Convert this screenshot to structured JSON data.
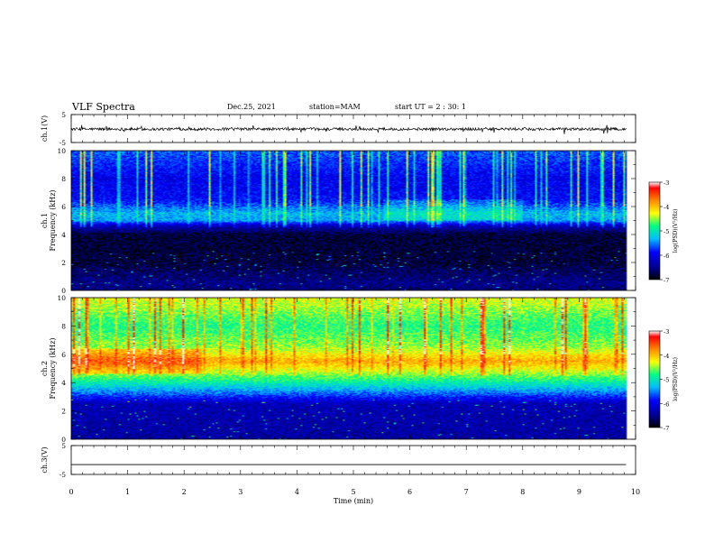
{
  "header": {
    "title": "VLF Spectra",
    "date": "Dec.25, 2021",
    "station": "station=MAM",
    "start_ut": "start  UT =  2 : 30: 1"
  },
  "colors": {
    "waveform": "#000000",
    "colormap": [
      "#000000",
      "#00008b",
      "#0000ff",
      "#00bfff",
      "#00ff80",
      "#ffff00",
      "#ff8000",
      "#ff0000",
      "#ffffff"
    ]
  },
  "chart_data": [
    {
      "id": "ch1-waveform",
      "type": "line",
      "ylabel": "ch.1(V)",
      "ylim": [
        -5,
        5
      ],
      "yticks": [
        "5",
        "-5"
      ],
      "xlim": [
        0,
        10
      ],
      "description_values": {
        "mean": -0.2,
        "amplitude": 1.0
      },
      "grid": false
    },
    {
      "id": "ch1-spectrogram",
      "type": "heatmap",
      "ylabel_line1": "ch.1",
      "ylabel_line2": "Frequency (kHz)",
      "ylim": [
        0,
        10
      ],
      "yticks": [
        "0",
        "2",
        "4",
        "6",
        "8",
        "10"
      ],
      "xlim": [
        0,
        10
      ],
      "data_end_min": 9.83,
      "colorbar": {
        "label": "log(PSD)(V²/Hz)",
        "range": [
          -7,
          -3
        ],
        "ticks": [
          "-3",
          "-4",
          "-5",
          "-6",
          "-7"
        ]
      },
      "profile": [
        {
          "f": 0.0,
          "v": -6.6
        },
        {
          "f": 0.5,
          "v": -6.5
        },
        {
          "f": 2.0,
          "v": -6.8
        },
        {
          "f": 4.0,
          "v": -6.8
        },
        {
          "f": 4.6,
          "v": -6.3
        },
        {
          "f": 5.0,
          "v": -5.4
        },
        {
          "f": 5.5,
          "v": -5.3
        },
        {
          "f": 6.5,
          "v": -5.9
        },
        {
          "f": 8.0,
          "v": -6.0
        },
        {
          "f": 10.0,
          "v": -5.6
        }
      ]
    },
    {
      "id": "ch2-spectrogram",
      "type": "heatmap",
      "ylabel_line1": "ch.2",
      "ylabel_line2": "Frequency (kHz)",
      "ylim": [
        0,
        10
      ],
      "yticks": [
        "0",
        "2",
        "4",
        "6",
        "8",
        "10"
      ],
      "xlim": [
        0,
        10
      ],
      "data_end_min": 9.83,
      "colorbar": {
        "label": "log(PSD)(V²/Hz)",
        "range": [
          -7,
          -3
        ],
        "ticks": [
          "-3",
          "-4",
          "-5",
          "-6",
          "-7"
        ]
      },
      "profile": [
        {
          "f": 0.0,
          "v": -6.4
        },
        {
          "f": 2.5,
          "v": -6.3
        },
        {
          "f": 3.2,
          "v": -5.6
        },
        {
          "f": 4.2,
          "v": -4.8
        },
        {
          "f": 5.5,
          "v": -3.9
        },
        {
          "f": 6.5,
          "v": -4.5
        },
        {
          "f": 8.0,
          "v": -4.8
        },
        {
          "f": 10.0,
          "v": -4.3
        }
      ]
    },
    {
      "id": "ch3-waveform",
      "type": "line",
      "ylabel": "ch.3(V)",
      "ylim": [
        -5,
        5
      ],
      "yticks": [
        "5",
        "-5"
      ],
      "xlim": [
        0,
        10
      ],
      "description_values": {
        "mean": -1.6,
        "amplitude": 0.0
      },
      "xlabel": "Time (min)",
      "xticks": [
        "0",
        "1",
        "2",
        "3",
        "4",
        "5",
        "6",
        "7",
        "8",
        "9",
        "10"
      ],
      "grid": false
    }
  ]
}
